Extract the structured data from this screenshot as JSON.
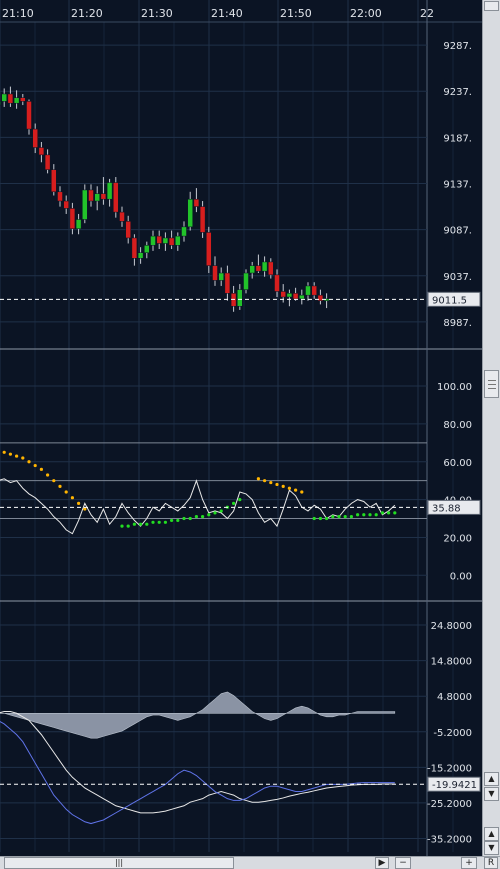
{
  "time_labels": [
    "21:10",
    "21:20",
    "21:30",
    "21:40",
    "21:50",
    "22:00",
    "22"
  ],
  "panels": [
    {
      "id": "price",
      "chart_data": {
        "type": "candlestick",
        "ylim": [
          8962,
          9312
        ],
        "yticks": [
          "9287.",
          "9237.",
          "9187.",
          "9137.",
          "9087.",
          "9037.",
          "8987."
        ],
        "ytick_values": [
          9287,
          9237,
          9187,
          9137,
          9087,
          9037,
          8987
        ],
        "current_label": "9011.5",
        "current_value": 9011.5,
        "bullish_color": "#22c32a",
        "bearish_color": "#d61e1e",
        "candles": [
          [
            9222,
            9230,
            9214,
            9226
          ],
          [
            9226,
            9240,
            9220,
            9234
          ],
          [
            9234,
            9242,
            9220,
            9224
          ],
          [
            9224,
            9238,
            9218,
            9230
          ],
          [
            9230,
            9234,
            9222,
            9226
          ],
          [
            9226,
            9228,
            9190,
            9196
          ],
          [
            9196,
            9202,
            9170,
            9176
          ],
          [
            9176,
            9182,
            9160,
            9168
          ],
          [
            9168,
            9174,
            9148,
            9152
          ],
          [
            9152,
            9158,
            9124,
            9128
          ],
          [
            9128,
            9134,
            9112,
            9118
          ],
          [
            9118,
            9124,
            9104,
            9110
          ],
          [
            9110,
            9116,
            9082,
            9088
          ],
          [
            9088,
            9104,
            9082,
            9098
          ],
          [
            9098,
            9136,
            9094,
            9130
          ],
          [
            9130,
            9136,
            9112,
            9118
          ],
          [
            9118,
            9134,
            9108,
            9126
          ],
          [
            9126,
            9144,
            9114,
            9120
          ],
          [
            9120,
            9142,
            9112,
            9138
          ],
          [
            9138,
            9144,
            9100,
            9106
          ],
          [
            9106,
            9112,
            9090,
            9096
          ],
          [
            9096,
            9102,
            9072,
            9078
          ],
          [
            9078,
            9082,
            9048,
            9056
          ],
          [
            9056,
            9068,
            9050,
            9062
          ],
          [
            9062,
            9074,
            9056,
            9070
          ],
          [
            9070,
            9086,
            9064,
            9080
          ],
          [
            9080,
            9086,
            9066,
            9072
          ],
          [
            9072,
            9084,
            9064,
            9078
          ],
          [
            9078,
            9086,
            9066,
            9070
          ],
          [
            9070,
            9084,
            9064,
            9080
          ],
          [
            9080,
            9096,
            9074,
            9090
          ],
          [
            9090,
            9128,
            9086,
            9120
          ],
          [
            9120,
            9132,
            9106,
            9112
          ],
          [
            9112,
            9118,
            9078,
            9084
          ],
          [
            9084,
            9090,
            9040,
            9048
          ],
          [
            9048,
            9058,
            9026,
            9032
          ],
          [
            9032,
            9046,
            9026,
            9040
          ],
          [
            9040,
            9048,
            9010,
            9018
          ],
          [
            9018,
            9026,
            8998,
            9004
          ],
          [
            9004,
            9028,
            9000,
            9022
          ],
          [
            9022,
            9044,
            9018,
            9040
          ],
          [
            9040,
            9052,
            9034,
            9048
          ],
          [
            9048,
            9060,
            9040,
            9042
          ],
          [
            9042,
            9058,
            9036,
            9052
          ],
          [
            9052,
            9056,
            9034,
            9038
          ],
          [
            9038,
            9044,
            9014,
            9020
          ],
          [
            9020,
            9028,
            9008,
            9014
          ],
          [
            9014,
            9022,
            9004,
            9018
          ],
          [
            9018,
            9024,
            9010,
            9012
          ],
          [
            9012,
            9022,
            9006,
            9016
          ],
          [
            9016,
            9030,
            9010,
            9026
          ],
          [
            9026,
            9030,
            9012,
            9016
          ],
          [
            9016,
            9022,
            9006,
            9010
          ],
          [
            9010,
            9018,
            9002,
            9012
          ]
        ]
      }
    },
    {
      "id": "oscillator",
      "chart_data": {
        "type": "line",
        "ylim": [
          -12,
          118
        ],
        "yticks": [
          "100.00",
          "80.00",
          "60.00",
          "40.00",
          "20.00",
          "0.00"
        ],
        "ytick_values": [
          100,
          80,
          60,
          40,
          20,
          0
        ],
        "level_lines": [
          70,
          50,
          30
        ],
        "current_label": "35.88",
        "current_value": 35.88,
        "series": [
          {
            "style": "line",
            "color": "#e8e8e8",
            "values": [
              50,
              51,
              49,
              50,
              46,
              43,
              41,
              38,
              35,
              31,
              28,
              24,
              22,
              29,
              38,
              32,
              28,
              35,
              27,
              31,
              38,
              33,
              29,
              26,
              30,
              36,
              34,
              38,
              36,
              34,
              37,
              41,
              50,
              40,
              33,
              34,
              33,
              30,
              34,
              44,
              43,
              40,
              33,
              28,
              30,
              26,
              35,
              45,
              42,
              36,
              34,
              37,
              35,
              30,
              32,
              31,
              35,
              38,
              40,
              39,
              36,
              38,
              32,
              34,
              37
            ]
          },
          {
            "style": "dots",
            "color": "#ffb400",
            "x": [
              0,
              1,
              2,
              3,
              4,
              5,
              6,
              7,
              8,
              9,
              10,
              11,
              12,
              13,
              14,
              15,
              16,
              17,
              18,
              19,
              20,
              21,
              22,
              23,
              24,
              25,
              26,
              27,
              28,
              29,
              30,
              31,
              32,
              33,
              34,
              35,
              36,
              37,
              38,
              39,
              40,
              41,
              42,
              43,
              44,
              45,
              46,
              47,
              48,
              49,
              50,
              51,
              52,
              53,
              54,
              55,
              56,
              57,
              58,
              59,
              60,
              61,
              62,
              63,
              64
            ],
            "values": [
              65,
              65,
              64,
              63,
              62,
              60,
              58,
              56,
              53,
              50,
              47,
              44,
              41,
              38,
              35,
              null,
              null,
              null,
              null,
              null,
              null,
              null,
              null,
              null,
              null,
              null,
              null,
              null,
              null,
              null,
              null,
              null,
              null,
              null,
              null,
              null,
              null,
              null,
              null,
              null,
              null,
              null,
              51,
              50,
              49,
              48,
              47,
              46,
              45,
              44,
              null,
              null,
              null,
              null,
              null,
              null,
              null,
              null,
              null,
              null,
              null,
              null,
              null,
              null,
              null
            ]
          },
          {
            "style": "dots",
            "color": "#22dd22",
            "x": [
              0,
              1,
              2,
              3,
              4,
              5,
              6,
              7,
              8,
              9,
              10,
              11,
              12,
              13,
              14,
              15,
              16,
              17,
              18,
              19,
              20,
              21,
              22,
              23,
              24,
              25,
              26,
              27,
              28,
              29,
              30,
              31,
              32,
              33,
              34,
              35,
              36,
              37,
              38,
              39,
              40,
              41,
              42,
              43,
              44,
              45,
              46,
              47,
              48,
              49,
              50,
              51,
              52,
              53,
              54,
              55,
              56,
              57,
              58,
              59,
              60,
              61,
              62,
              63,
              64
            ],
            "values": [
              null,
              null,
              null,
              null,
              null,
              null,
              null,
              null,
              null,
              null,
              null,
              null,
              null,
              null,
              null,
              null,
              null,
              null,
              null,
              null,
              26,
              26,
              27,
              27,
              27,
              28,
              28,
              28,
              29,
              29,
              30,
              30,
              31,
              31,
              32,
              33,
              34,
              36,
              38,
              40,
              null,
              null,
              null,
              null,
              null,
              null,
              null,
              null,
              null,
              null,
              null,
              30,
              30,
              30,
              31,
              31,
              31,
              31,
              32,
              32,
              32,
              32,
              33,
              33,
              33
            ]
          }
        ]
      }
    },
    {
      "id": "macd",
      "chart_data": {
        "type": "line",
        "ylim": [
          -39,
          31
        ],
        "yticks": [
          "24.8000",
          "14.8000",
          "4.8000",
          "-5.2000",
          "-15.2000",
          "-25.2000",
          "-35.2000"
        ],
        "ytick_values": [
          24.8,
          14.8,
          4.8,
          -5.2,
          -15.2,
          -25.2,
          -35.2
        ],
        "zero_line": 0,
        "current_label": "-19.9421",
        "current_value": -19.9421,
        "histogram": {
          "color": "#8a93a4",
          "values": [
            0,
            0,
            -0.5,
            -1,
            -1.5,
            -2,
            -2.5,
            -3,
            -3.5,
            -4,
            -4.5,
            -5,
            -5.5,
            -6,
            -6.5,
            -7,
            -7,
            -6.5,
            -6,
            -5.5,
            -5,
            -4,
            -3,
            -2,
            -1,
            -0.5,
            -0.5,
            -1,
            -1.5,
            -2,
            -1.5,
            -1,
            0,
            1,
            2.5,
            4,
            5.5,
            6,
            5,
            3.5,
            2,
            0.5,
            -0.5,
            -1.5,
            -2,
            -1.5,
            -0.5,
            0.5,
            1.5,
            2,
            1.5,
            0.5,
            -0.5,
            -1,
            -1,
            -0.5,
            -0.5,
            0,
            0.5,
            0.5,
            0.5,
            0.5,
            0.5,
            0.5,
            0.5
          ]
        },
        "series": [
          {
            "style": "line",
            "color": "#e8e8e8",
            "values": [
              0,
              0.5,
              0.5,
              0,
              -1,
              -2,
              -4,
              -6,
              -8.5,
              -11,
              -13.5,
              -16,
              -18,
              -19.5,
              -21,
              -22,
              -23,
              -24,
              -25,
              -26,
              -26.5,
              -27,
              -27.5,
              -28,
              -28,
              -28,
              -27.8,
              -27.5,
              -27,
              -26.5,
              -26,
              -25,
              -24.5,
              -24,
              -23,
              -22.5,
              -22,
              -22.5,
              -23,
              -24,
              -24.5,
              -25,
              -25,
              -24.8,
              -24.5,
              -24.2,
              -23.8,
              -23.3,
              -22.9,
              -22.5,
              -22.2,
              -21.8,
              -21.4,
              -21,
              -20.8,
              -20.6,
              -20.4,
              -20.2,
              -20.1,
              -20,
              -20,
              -20,
              -19.9,
              -19.9,
              -19.9
            ]
          },
          {
            "style": "line",
            "color": "#5f73e8",
            "values": [
              -2,
              -3,
              -4.5,
              -6,
              -8,
              -11,
              -14,
              -17,
              -20,
              -23,
              -25,
              -27,
              -28.5,
              -29.5,
              -30.5,
              -31,
              -30.5,
              -30,
              -29,
              -28,
              -27,
              -26,
              -25,
              -24,
              -23,
              -22,
              -21,
              -20,
              -18.5,
              -17,
              -16,
              -16.5,
              -17.5,
              -19,
              -20.5,
              -22,
              -23,
              -24,
              -24.5,
              -24.5,
              -24,
              -23,
              -22,
              -21,
              -20.5,
              -20.5,
              -21,
              -21.5,
              -22,
              -22,
              -21.5,
              -21,
              -20.5,
              -20,
              -20,
              -20,
              -20,
              -19.8,
              -19.6,
              -19.5,
              -19.5,
              -19.5,
              -19.5,
              -19.5,
              -19.5
            ]
          }
        ]
      }
    }
  ],
  "scrollbar": {
    "up": "▲",
    "down": "▼",
    "left": "◀",
    "right": "▶",
    "zoom_out": "−",
    "zoom_in": "+",
    "reset": "R",
    "grip": "|||"
  }
}
